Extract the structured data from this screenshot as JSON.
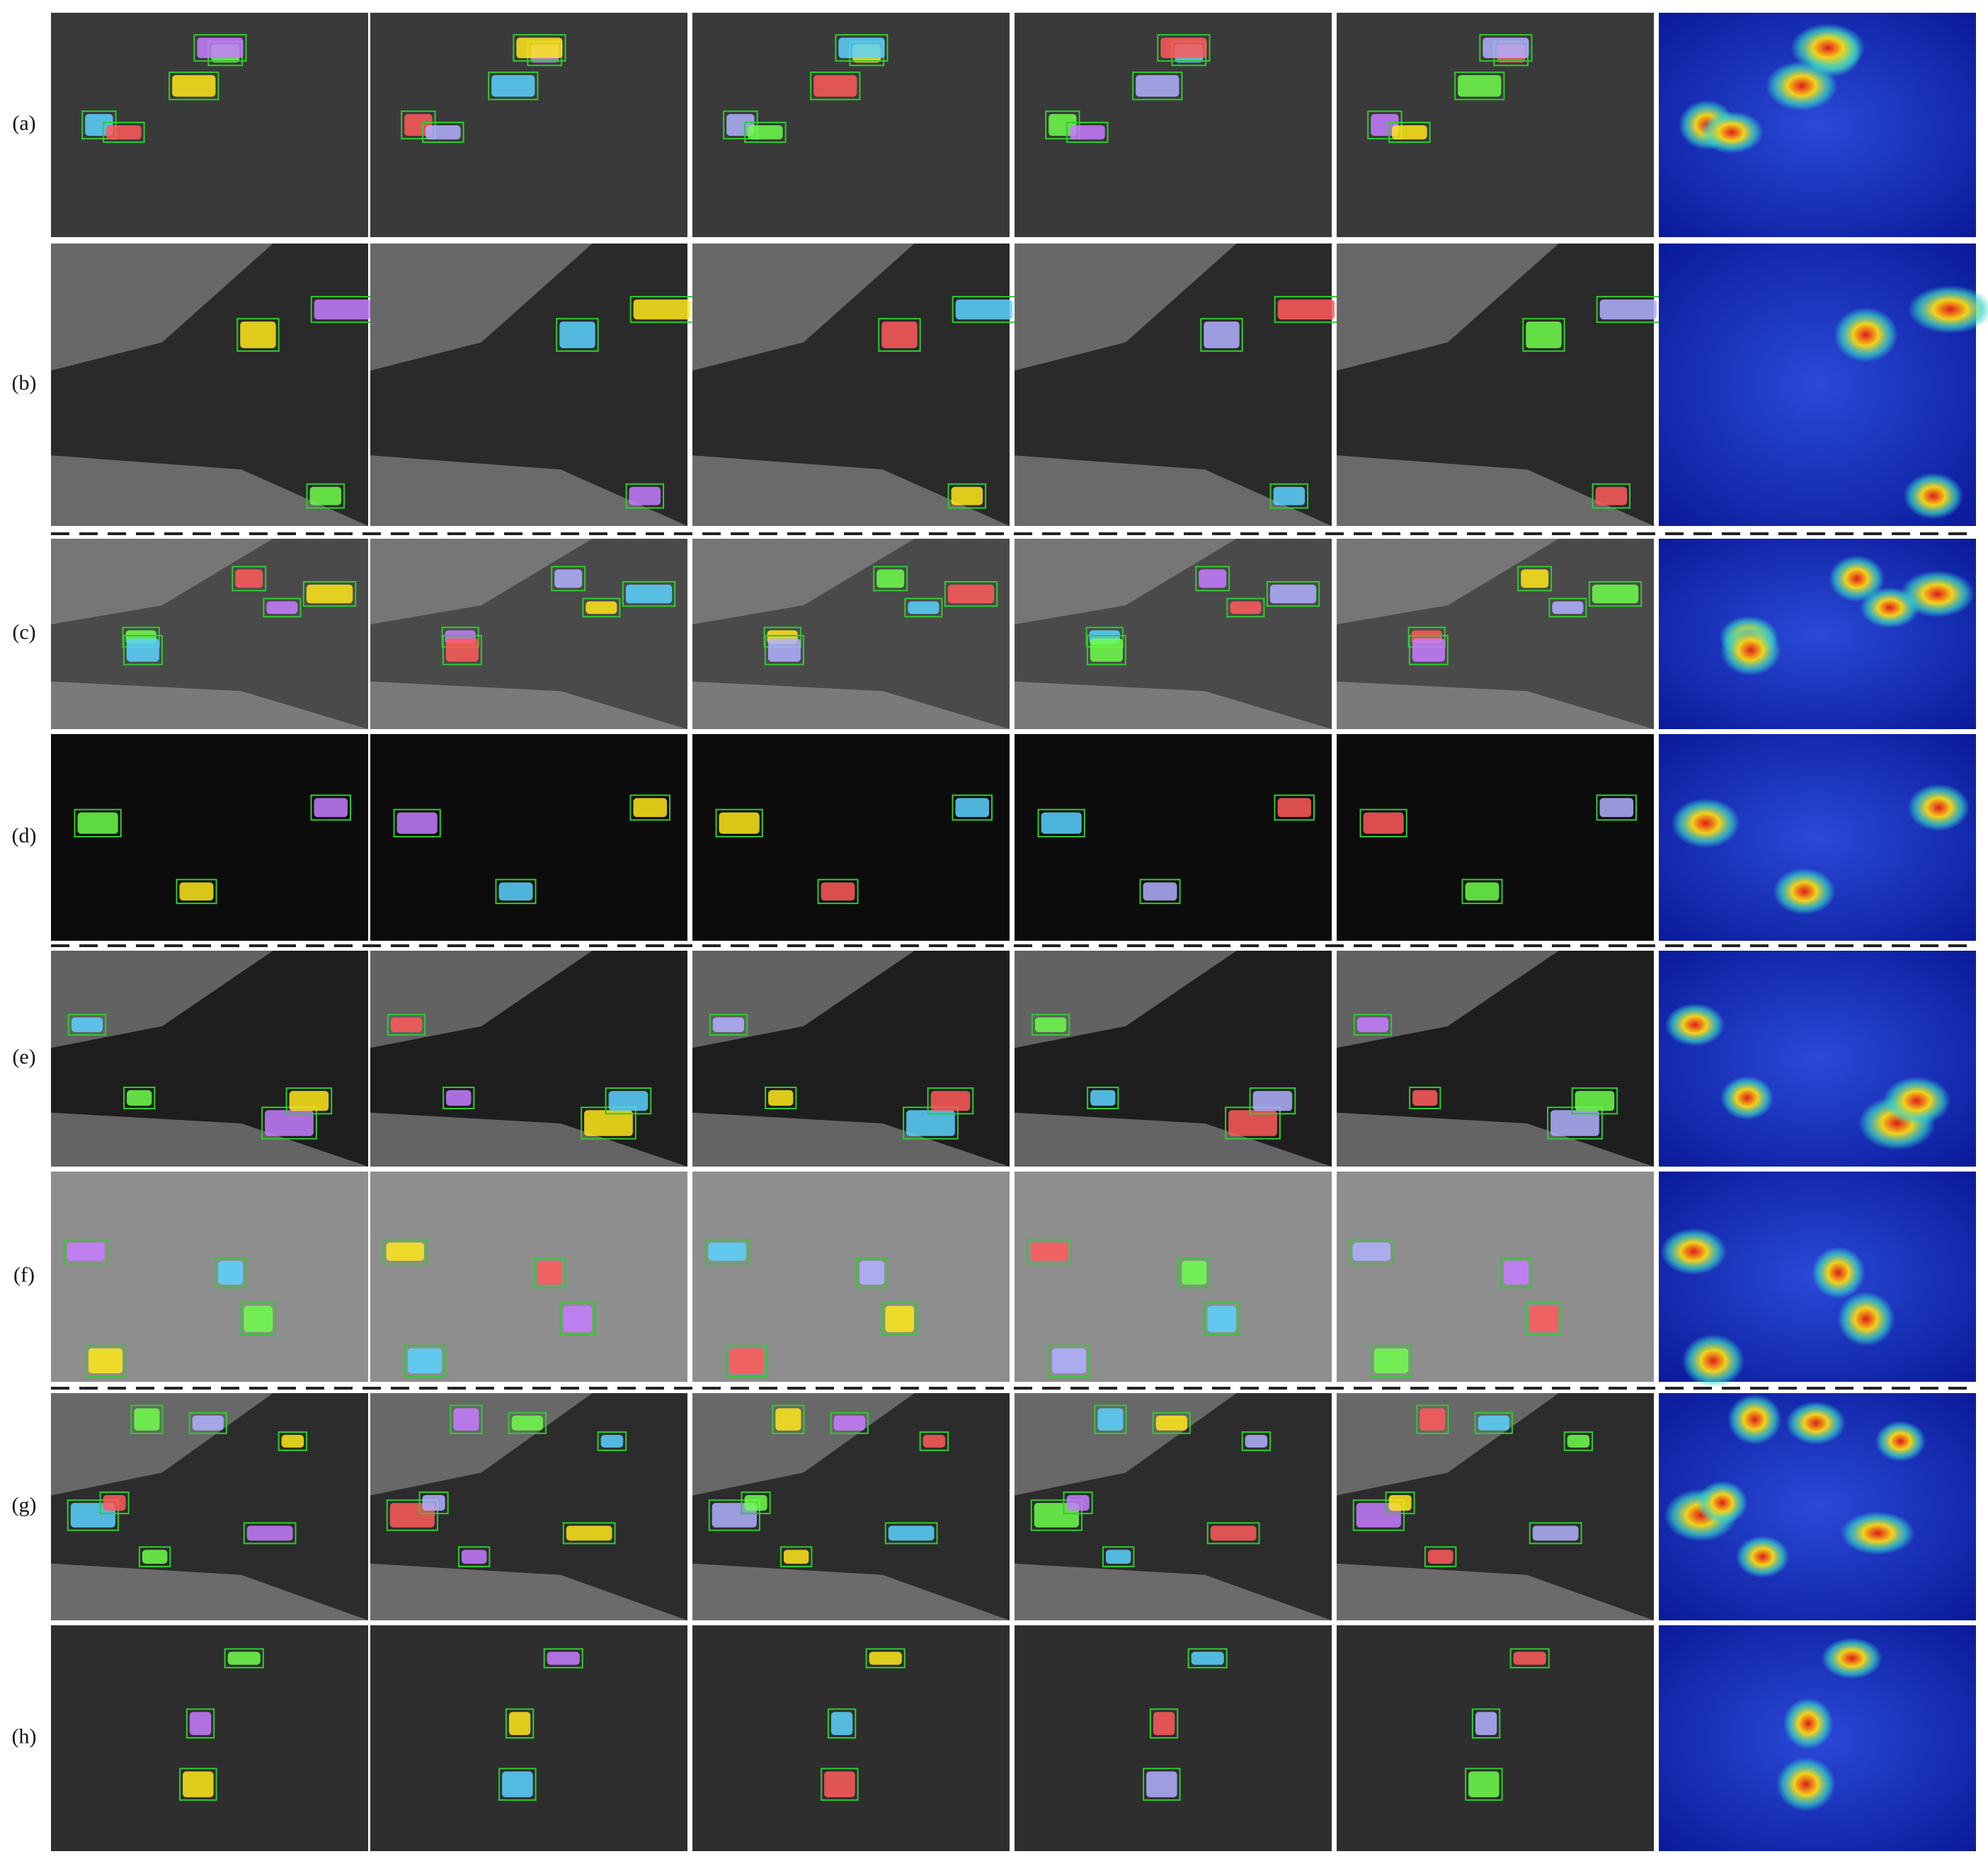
{
  "rows": [
    {
      "label": "(a)"
    },
    {
      "label": "(b)"
    },
    {
      "label": "(c)"
    },
    {
      "label": "(d)"
    },
    {
      "label": "(e)"
    },
    {
      "label": "(f)"
    },
    {
      "label": "(g)"
    },
    {
      "label": "(h)"
    }
  ]
}
